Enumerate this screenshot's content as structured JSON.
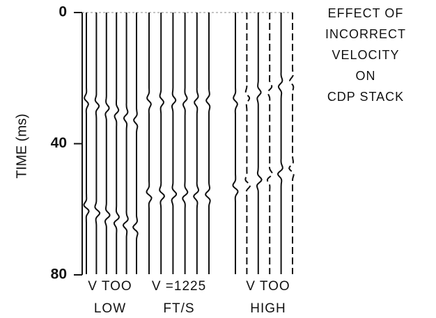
{
  "chart_data": {
    "type": "seismic-traces",
    "title_lines": [
      "EFFECT OF",
      "INCORRECT",
      "VELOCITY",
      "ON",
      "CDP STACK"
    ],
    "y_label": "TIME (ms)",
    "ylim": [
      0,
      80
    ],
    "yticks": [
      0,
      40,
      80
    ],
    "panels": [
      {
        "label_lines": [
          "V TOO",
          "LOW"
        ]
      },
      {
        "label_lines": [
          "V =1225",
          "FT/S"
        ]
      },
      {
        "label_lines": [
          "V TOO",
          "HIGH"
        ]
      }
    ]
  }
}
